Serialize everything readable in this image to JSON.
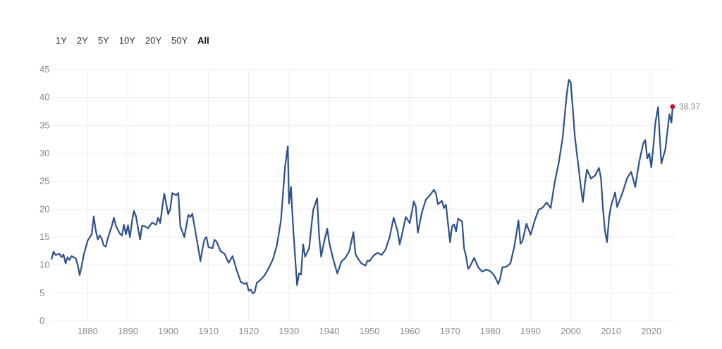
{
  "range_buttons": [
    {
      "label": "1Y",
      "active": false
    },
    {
      "label": "2Y",
      "active": false
    },
    {
      "label": "5Y",
      "active": false
    },
    {
      "label": "10Y",
      "active": false
    },
    {
      "label": "20Y",
      "active": false
    },
    {
      "label": "50Y",
      "active": false
    },
    {
      "label": "All",
      "active": true
    }
  ],
  "colors": {
    "line": "#2e5189",
    "marker": "#d0112b",
    "grid": "#ececec",
    "tick_text": "#8a8a8a"
  },
  "chart_data": {
    "type": "line",
    "title": "",
    "xlabel": "",
    "ylabel": "",
    "xlim": [
      1871,
      2026
    ],
    "ylim": [
      0,
      45
    ],
    "yticks": [
      0,
      5,
      10,
      15,
      20,
      25,
      30,
      35,
      40,
      45
    ],
    "xticks": [
      1880,
      1890,
      1900,
      1910,
      1920,
      1930,
      1940,
      1950,
      1960,
      1970,
      1980,
      1990,
      2000,
      2010,
      2020
    ],
    "grid": true,
    "last_value_label": "38.37",
    "series": [
      {
        "points": [
          [
            1871,
            11
          ],
          [
            1871.5,
            12.4
          ],
          [
            1872,
            11.8
          ],
          [
            1873,
            12
          ],
          [
            1873.5,
            11.4
          ],
          [
            1874,
            11.9
          ],
          [
            1874.5,
            10.3
          ],
          [
            1875,
            11.4
          ],
          [
            1875.5,
            10.9
          ],
          [
            1876,
            11.6
          ],
          [
            1877,
            11.2
          ],
          [
            1877.5,
            10.1
          ],
          [
            1878,
            8.2
          ],
          [
            1878.5,
            9.8
          ],
          [
            1879,
            11.8
          ],
          [
            1880,
            14.4
          ],
          [
            1881,
            15.5
          ],
          [
            1881.5,
            18.7
          ],
          [
            1882,
            16.2
          ],
          [
            1882.5,
            14.6
          ],
          [
            1883,
            15.3
          ],
          [
            1883.5,
            14.7
          ],
          [
            1884,
            13.5
          ],
          [
            1884.5,
            13.3
          ],
          [
            1885,
            14.8
          ],
          [
            1886,
            17
          ],
          [
            1886.5,
            18.5
          ],
          [
            1887,
            17
          ],
          [
            1888,
            15.6
          ],
          [
            1888.5,
            15.3
          ],
          [
            1889,
            17.2
          ],
          [
            1889.5,
            15.5
          ],
          [
            1890,
            17.1
          ],
          [
            1890.5,
            15
          ],
          [
            1891,
            17.8
          ],
          [
            1891.5,
            19.7
          ],
          [
            1892,
            18.7
          ],
          [
            1893,
            14.6
          ],
          [
            1893.5,
            17
          ],
          [
            1894,
            17
          ],
          [
            1895,
            16.6
          ],
          [
            1896,
            17.6
          ],
          [
            1897,
            17.2
          ],
          [
            1897.5,
            18.5
          ],
          [
            1898,
            17.5
          ],
          [
            1899,
            22.8
          ],
          [
            1899.5,
            21
          ],
          [
            1900,
            19.1
          ],
          [
            1900.5,
            20
          ],
          [
            1901,
            22.9
          ],
          [
            1902,
            22.5
          ],
          [
            1902.5,
            22.9
          ],
          [
            1903,
            17
          ],
          [
            1904,
            15
          ],
          [
            1905,
            19
          ],
          [
            1905.5,
            18.6
          ],
          [
            1906,
            19.2
          ],
          [
            1907,
            15
          ],
          [
            1908,
            10.7
          ],
          [
            1908.5,
            12.9
          ],
          [
            1909,
            14.6
          ],
          [
            1909.5,
            15
          ],
          [
            1910,
            13.2
          ],
          [
            1911,
            13
          ],
          [
            1911.5,
            14.5
          ],
          [
            1912,
            14.2
          ],
          [
            1913,
            12.5
          ],
          [
            1914,
            12
          ],
          [
            1915,
            10.4
          ],
          [
            1916,
            11.6
          ],
          [
            1917,
            9.1
          ],
          [
            1918,
            7
          ],
          [
            1919,
            6.6
          ],
          [
            1919.5,
            6.8
          ],
          [
            1920,
            5.4
          ],
          [
            1920.5,
            5.6
          ],
          [
            1921,
            4.9
          ],
          [
            1921.5,
            5.2
          ],
          [
            1922,
            6.8
          ],
          [
            1923,
            7.4
          ],
          [
            1924,
            8.2
          ],
          [
            1925,
            9.5
          ],
          [
            1926,
            11
          ],
          [
            1927,
            13.5
          ],
          [
            1928,
            18
          ],
          [
            1929,
            27.5
          ],
          [
            1929.7,
            31.3
          ],
          [
            1930,
            21
          ],
          [
            1930.5,
            24
          ],
          [
            1931,
            17
          ],
          [
            1932,
            6.4
          ],
          [
            1932.5,
            8.5
          ],
          [
            1933,
            8.3
          ],
          [
            1933.5,
            13.7
          ],
          [
            1934,
            11.5
          ],
          [
            1935,
            13
          ],
          [
            1936,
            19.8
          ],
          [
            1937,
            22
          ],
          [
            1937.5,
            15
          ],
          [
            1938,
            11.5
          ],
          [
            1938.5,
            13.4
          ],
          [
            1939,
            15
          ],
          [
            1939.5,
            16.5
          ],
          [
            1940,
            14
          ],
          [
            1941,
            11
          ],
          [
            1942,
            8.5
          ],
          [
            1942.5,
            9.5
          ],
          [
            1943,
            10.6
          ],
          [
            1944,
            11.3
          ],
          [
            1945,
            12.5
          ],
          [
            1946,
            15.9
          ],
          [
            1946.5,
            12
          ],
          [
            1947,
            11.3
          ],
          [
            1948,
            10.3
          ],
          [
            1949,
            9.9
          ],
          [
            1949.5,
            10.8
          ],
          [
            1950,
            10.7
          ],
          [
            1951,
            11.7
          ],
          [
            1952,
            12.2
          ],
          [
            1953,
            11.8
          ],
          [
            1954,
            12.8
          ],
          [
            1955,
            15
          ],
          [
            1956,
            18.5
          ],
          [
            1957,
            16
          ],
          [
            1957.5,
            13.7
          ],
          [
            1958,
            15.2
          ],
          [
            1959,
            18.6
          ],
          [
            1960,
            17.5
          ],
          [
            1961,
            21.4
          ],
          [
            1961.5,
            20.5
          ],
          [
            1962,
            15.8
          ],
          [
            1963,
            19.4
          ],
          [
            1964,
            21.7
          ],
          [
            1965,
            22.5
          ],
          [
            1966,
            23.5
          ],
          [
            1966.5,
            22.8
          ],
          [
            1967,
            20.9
          ],
          [
            1968,
            21.5
          ],
          [
            1968.5,
            20.2
          ],
          [
            1969,
            20.8
          ],
          [
            1970,
            14.1
          ],
          [
            1970.5,
            16.9
          ],
          [
            1971,
            17.3
          ],
          [
            1971.5,
            16
          ],
          [
            1972,
            18.3
          ],
          [
            1973,
            17.8
          ],
          [
            1973.5,
            13
          ],
          [
            1974,
            11.5
          ],
          [
            1974.5,
            9.3
          ],
          [
            1975,
            9.8
          ],
          [
            1976,
            11.3
          ],
          [
            1977,
            9.6
          ],
          [
            1978,
            8.8
          ],
          [
            1979,
            9.2
          ],
          [
            1980,
            8.9
          ],
          [
            1981,
            8.1
          ],
          [
            1982,
            6.6
          ],
          [
            1982.5,
            7.7
          ],
          [
            1983,
            9.6
          ],
          [
            1984,
            9.7
          ],
          [
            1985,
            10.3
          ],
          [
            1986,
            13.4
          ],
          [
            1987,
            18
          ],
          [
            1987.5,
            13.8
          ],
          [
            1988,
            14.3
          ],
          [
            1989,
            17.4
          ],
          [
            1990,
            15.4
          ],
          [
            1991,
            17.9
          ],
          [
            1992,
            19.9
          ],
          [
            1993,
            20.3
          ],
          [
            1994,
            21.2
          ],
          [
            1995,
            20.2
          ],
          [
            1996,
            24.8
          ],
          [
            1997,
            28.3
          ],
          [
            1998,
            32.9
          ],
          [
            1998.5,
            36.9
          ],
          [
            1999,
            40.6
          ],
          [
            1999.5,
            43.2
          ],
          [
            2000,
            42.7
          ],
          [
            2000.5,
            38
          ],
          [
            2001,
            33
          ],
          [
            2002,
            27
          ],
          [
            2002.5,
            24
          ],
          [
            2003,
            21.3
          ],
          [
            2003.5,
            24.5
          ],
          [
            2004,
            27.1
          ],
          [
            2005,
            25.5
          ],
          [
            2006,
            26
          ],
          [
            2007,
            27.4
          ],
          [
            2007.5,
            25.5
          ],
          [
            2008,
            20
          ],
          [
            2008.5,
            16
          ],
          [
            2009,
            14.1
          ],
          [
            2009.5,
            18.5
          ],
          [
            2010,
            20.6
          ],
          [
            2011,
            23
          ],
          [
            2011.5,
            20.4
          ],
          [
            2012,
            21.3
          ],
          [
            2013,
            23.3
          ],
          [
            2014,
            25.6
          ],
          [
            2015,
            26.7
          ],
          [
            2016,
            24
          ],
          [
            2017,
            28.5
          ],
          [
            2018,
            31.8
          ],
          [
            2018.5,
            32.4
          ],
          [
            2019,
            29.1
          ],
          [
            2019.5,
            30
          ],
          [
            2020,
            27.5
          ],
          [
            2020.5,
            31.2
          ],
          [
            2021,
            35.5
          ],
          [
            2021.7,
            38.3
          ],
          [
            2022,
            34
          ],
          [
            2022.5,
            28.2
          ],
          [
            2023,
            29.5
          ],
          [
            2023.5,
            30.8
          ],
          [
            2024,
            34
          ],
          [
            2024.5,
            37
          ],
          [
            2025,
            35.5
          ],
          [
            2025.3,
            38.37
          ]
        ]
      }
    ]
  }
}
